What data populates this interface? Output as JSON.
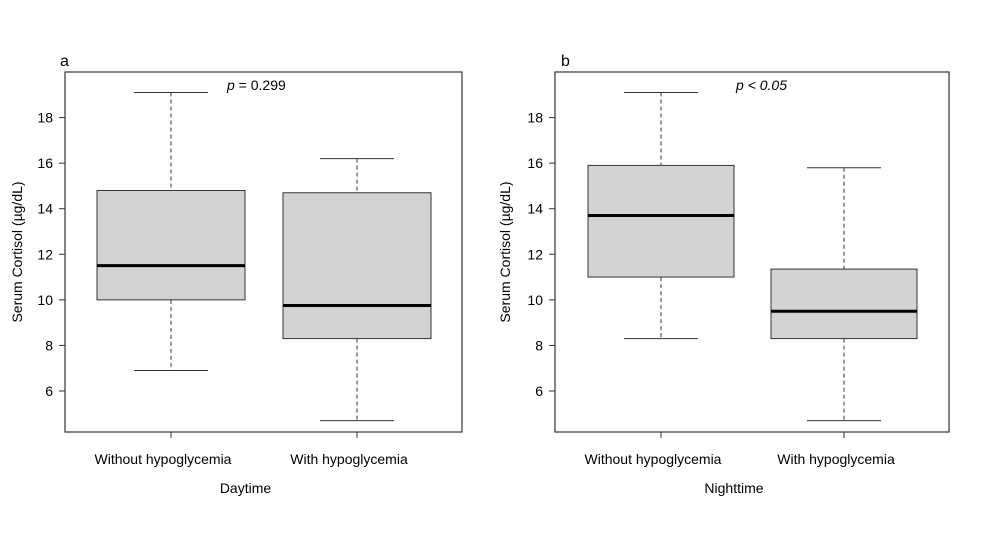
{
  "chart_data": [
    {
      "type": "boxplot",
      "panel_label": "a",
      "annotation": {
        "prefix": "p",
        "rest": " = 0.299",
        "rest_italic": false
      },
      "xlabel": "Daytime",
      "ylabel": "Serum Cortisol (µg/dL)",
      "ylim": [
        4.2,
        20.0
      ],
      "yticks": [
        6,
        8,
        10,
        12,
        14,
        16,
        18
      ],
      "categories": [
        "Without hypoglycemia",
        "With hypoglycemia"
      ],
      "boxes": [
        {
          "whisker_low": 6.9,
          "q1": 10.0,
          "median": 11.5,
          "q3": 14.8,
          "whisker_high": 19.1
        },
        {
          "whisker_low": 4.7,
          "q1": 8.3,
          "median": 9.75,
          "q3": 14.7,
          "whisker_high": 16.2
        }
      ],
      "box_color": "#d3d3d3"
    },
    {
      "type": "boxplot",
      "panel_label": "b",
      "annotation": {
        "prefix": "p",
        "rest": " < 0.05",
        "rest_italic": true
      },
      "xlabel": "Nighttime",
      "ylabel": "Serum Cortisol (µg/dL)",
      "ylim": [
        4.2,
        20.0
      ],
      "yticks": [
        6,
        8,
        10,
        12,
        14,
        16,
        18
      ],
      "categories": [
        "Without hypoglycemia",
        "With hypoglycemia"
      ],
      "boxes": [
        {
          "whisker_low": 8.3,
          "q1": 11.0,
          "median": 13.7,
          "q3": 15.9,
          "whisker_high": 19.1
        },
        {
          "whisker_low": 4.7,
          "q1": 8.3,
          "median": 9.5,
          "q3": 11.35,
          "whisker_high": 15.8
        }
      ],
      "box_color": "#d3d3d3"
    }
  ]
}
